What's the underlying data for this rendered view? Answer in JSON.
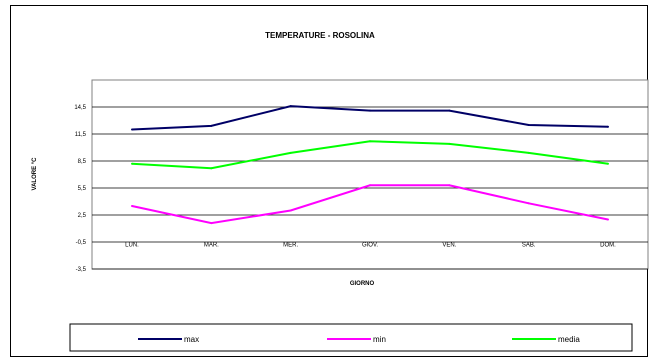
{
  "chart_data": {
    "type": "line",
    "title": "TEMPERATURE - ROSOLINA",
    "xlabel": "GIORNO",
    "ylabel": "VALORE °C",
    "categories": [
      "LUN.",
      "MAR.",
      "MER.",
      "GIOV.",
      "VEN.",
      "SAB.",
      "DOM."
    ],
    "y_ticks": [
      "-3,5",
      "-0,5",
      "2,5",
      "5,5",
      "8,5",
      "11,5",
      "14,5"
    ],
    "ylim": [
      -3.5,
      17.5
    ],
    "grid": true,
    "legend_position": "bottom",
    "series": [
      {
        "name": "max",
        "color": "#000066",
        "values": [
          12.0,
          12.4,
          14.6,
          14.1,
          14.1,
          12.5,
          12.3
        ]
      },
      {
        "name": "min",
        "color": "#ff00ff",
        "values": [
          3.5,
          1.6,
          3.0,
          5.8,
          5.8,
          3.8,
          2.0
        ]
      },
      {
        "name": "media",
        "color": "#00ff00",
        "values": [
          8.2,
          7.7,
          9.4,
          10.7,
          10.4,
          9.4,
          8.2
        ]
      }
    ]
  }
}
